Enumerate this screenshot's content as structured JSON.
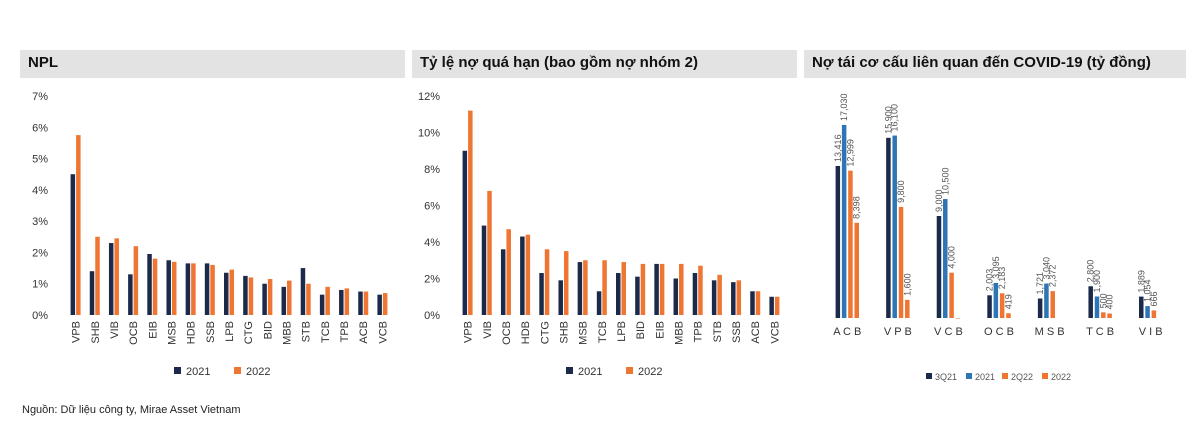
{
  "colors": {
    "c2021": "#1b2a4a",
    "c2022": "#ee7532",
    "c3q21": "#1b2a4a",
    "c2021b": "#2e75b6",
    "c2q22": "#ee7532",
    "c2022b": "#ee7532"
  },
  "source": "Nguồn: Dữ liệu công ty, Mirae Asset Vietnam",
  "chart_data": [
    {
      "type": "bar",
      "title": "NPL",
      "categories": [
        "VPB",
        "SHB",
        "VIB",
        "OCB",
        "EIB",
        "MSB",
        "HDB",
        "SSB",
        "LPB",
        "CTG",
        "BID",
        "MBB",
        "STB",
        "TCB",
        "TPB",
        "ACB",
        "VCB"
      ],
      "series": [
        {
          "name": "2021",
          "values": [
            4.5,
            1.4,
            2.3,
            1.3,
            1.95,
            1.75,
            1.65,
            1.65,
            1.35,
            1.25,
            1.0,
            0.9,
            1.5,
            0.65,
            0.8,
            0.75,
            0.65
          ]
        },
        {
          "name": "2022",
          "values": [
            5.75,
            2.5,
            2.45,
            2.2,
            1.8,
            1.7,
            1.65,
            1.6,
            1.45,
            1.2,
            1.15,
            1.1,
            1.0,
            0.9,
            0.85,
            0.75,
            0.7
          ]
        }
      ],
      "ylim": [
        0,
        7
      ],
      "yticks": [
        "0%",
        "1%",
        "2%",
        "3%",
        "4%",
        "5%",
        "6%",
        "7%"
      ],
      "legend": "bottom"
    },
    {
      "type": "bar",
      "title": "Tỷ lệ nợ quá hạn (bao gồm nợ nhóm 2)",
      "categories": [
        "VPB",
        "VIB",
        "OCB",
        "HDB",
        "CTG",
        "SHB",
        "MSB",
        "TCB",
        "LPB",
        "BID",
        "EIB",
        "MBB",
        "TPB",
        "STB",
        "SSB",
        "ACB",
        "VCB"
      ],
      "series": [
        {
          "name": "2021",
          "values": [
            9.0,
            4.9,
            3.6,
            4.3,
            2.3,
            1.9,
            2.9,
            1.3,
            2.3,
            2.1,
            2.8,
            2.0,
            2.3,
            1.9,
            1.8,
            1.3,
            1.0
          ]
        },
        {
          "name": "2022",
          "values": [
            11.2,
            6.8,
            4.7,
            4.4,
            3.6,
            3.5,
            3.0,
            3.0,
            2.9,
            2.8,
            2.8,
            2.8,
            2.7,
            2.2,
            1.9,
            1.3,
            1.0
          ]
        }
      ],
      "ylim": [
        0,
        12
      ],
      "yticks": [
        "0%",
        "2%",
        "4%",
        "6%",
        "8%",
        "10%",
        "12%"
      ],
      "legend": "bottom"
    },
    {
      "type": "bar",
      "title": "Nợ tái cơ cấu liên quan đến COVID-19 (tỷ đồng)",
      "categories": [
        "A C B",
        "V P B",
        "V C B",
        "O C B",
        "M S B",
        "T C B",
        "V I B"
      ],
      "series": [
        {
          "name": "3Q21",
          "values": [
            13416,
            15900,
            9000,
            2003,
            1721,
            2800,
            1889
          ],
          "labels": [
            "13,416",
            "15,900",
            "9,000",
            "2,003",
            "1,721",
            "2,800",
            "1,889"
          ]
        },
        {
          "name": "2021",
          "values": [
            17030,
            16100,
            10500,
            3095,
            3040,
            1900,
            1054
          ],
          "labels": [
            "17,030",
            "16,100",
            "10,500",
            "3,095",
            "3,040",
            "1,900",
            "1,054"
          ]
        },
        {
          "name": "2Q22",
          "values": [
            12999,
            9800,
            4000,
            2183,
            2372,
            500,
            666
          ],
          "labels": [
            "12,999",
            "9,800",
            "4,000",
            "2,183",
            "2,372",
            "500",
            "666"
          ]
        },
        {
          "name": "2022",
          "values": [
            8398,
            1600,
            0,
            419,
            null,
            400,
            null
          ],
          "labels": [
            "8,398",
            "1,600",
            "",
            "419",
            "",
            "400",
            ""
          ]
        }
      ],
      "ylim": [
        0,
        17030
      ],
      "legend": "bottom"
    }
  ]
}
